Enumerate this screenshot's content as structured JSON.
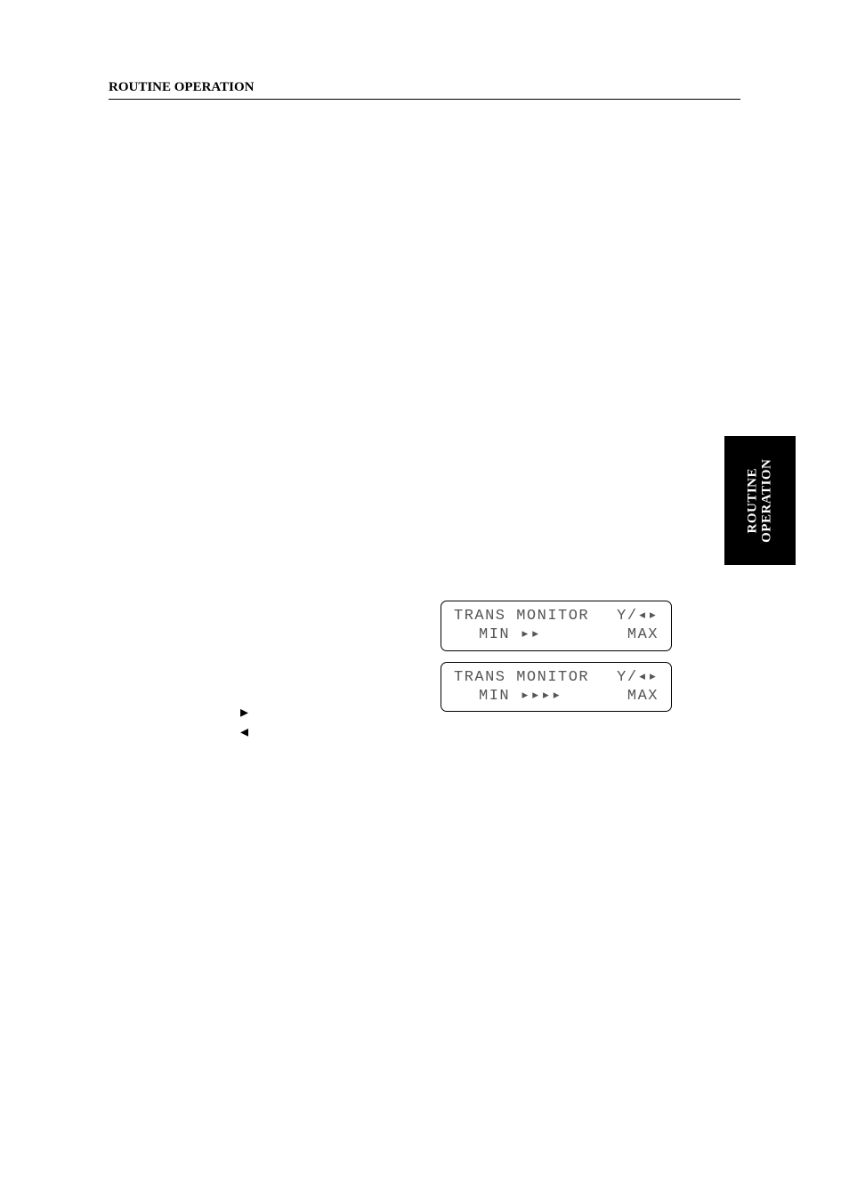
{
  "header": {
    "title": "ROUTINE OPERATION"
  },
  "side_tab": {
    "line1": "ROUTINE",
    "line2": "OPERATION"
  },
  "lcd_displays": [
    {
      "line1_left": "TRANS MONITOR",
      "line1_right": "Y/◂▸",
      "line2_left": "MIN ▸▸",
      "line2_right": "MAX"
    },
    {
      "line1_left": "TRANS MONITOR",
      "line1_right": "Y/◂▸",
      "line2_left": "MIN ▸▸▸▸",
      "line2_right": "MAX"
    }
  ],
  "arrows": {
    "right": "▸",
    "left": "◂"
  },
  "colors": {
    "page_bg": "#ffffff",
    "text": "#000000",
    "lcd_text": "#555555",
    "tab_bg": "#000000",
    "tab_text": "#ffffff",
    "rule": "#000000"
  },
  "typography": {
    "header_font": "Times New Roman",
    "header_size_pt": 11,
    "header_weight": "bold",
    "lcd_font": "Courier New",
    "lcd_size_pt": 13
  }
}
